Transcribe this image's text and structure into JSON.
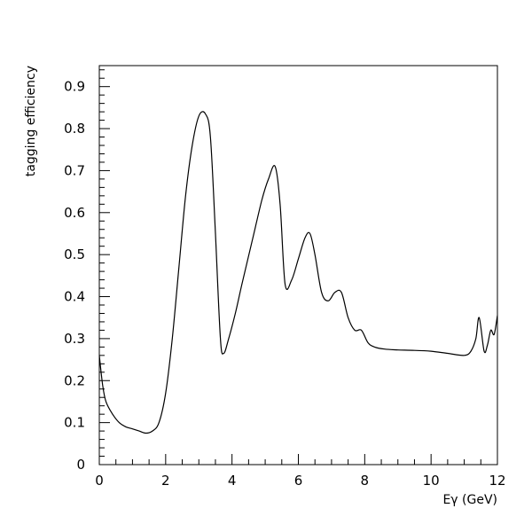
{
  "chart_data": {
    "type": "line",
    "title": "",
    "xlabel": "Eγ (GeV)",
    "ylabel": "tagging efficiency",
    "xlim": [
      0,
      12
    ],
    "ylim": [
      0,
      0.95
    ],
    "x_ticks": [
      0,
      2,
      4,
      6,
      8,
      10,
      12
    ],
    "x_tick_labels": [
      "0",
      "2",
      "4",
      "6",
      "8",
      "10",
      "12"
    ],
    "y_ticks": [
      0,
      0.1,
      0.2,
      0.3,
      0.4,
      0.5,
      0.6,
      0.7,
      0.8,
      0.9
    ],
    "y_tick_labels": [
      "0",
      "0.1",
      "0.2",
      "0.3",
      "0.4",
      "0.5",
      "0.6",
      "0.7",
      "0.8",
      "0.9"
    ],
    "grid": false,
    "legend": "none",
    "line_color": "#000000",
    "series": [
      {
        "x": [
          0,
          0.1,
          0.2,
          0.4,
          0.6,
          0.8,
          1.0,
          1.2,
          1.4,
          1.6,
          1.8,
          2.0,
          2.2,
          2.4,
          2.6,
          2.8,
          3.0,
          3.2,
          3.35,
          3.5,
          3.65,
          3.75,
          3.9,
          4.1,
          4.3,
          4.6,
          4.9,
          5.1,
          5.3,
          5.45,
          5.6,
          5.8,
          6.0,
          6.2,
          6.35,
          6.5,
          6.7,
          6.9,
          7.1,
          7.3,
          7.5,
          7.7,
          7.9,
          8.1,
          8.3,
          8.6,
          9.0,
          9.5,
          10.0,
          10.5,
          11.0,
          11.2,
          11.35,
          11.45,
          11.6,
          11.7,
          11.8,
          11.9,
          12.0
        ],
        "y": [
          0.26,
          0.19,
          0.15,
          0.12,
          0.1,
          0.09,
          0.085,
          0.08,
          0.075,
          0.08,
          0.1,
          0.17,
          0.3,
          0.47,
          0.64,
          0.76,
          0.83,
          0.835,
          0.78,
          0.55,
          0.3,
          0.265,
          0.3,
          0.36,
          0.43,
          0.53,
          0.63,
          0.68,
          0.71,
          0.62,
          0.43,
          0.44,
          0.49,
          0.54,
          0.55,
          0.5,
          0.41,
          0.39,
          0.41,
          0.41,
          0.35,
          0.32,
          0.32,
          0.29,
          0.28,
          0.275,
          0.273,
          0.272,
          0.27,
          0.265,
          0.26,
          0.27,
          0.3,
          0.35,
          0.27,
          0.285,
          0.32,
          0.31,
          0.355
        ]
      }
    ]
  }
}
